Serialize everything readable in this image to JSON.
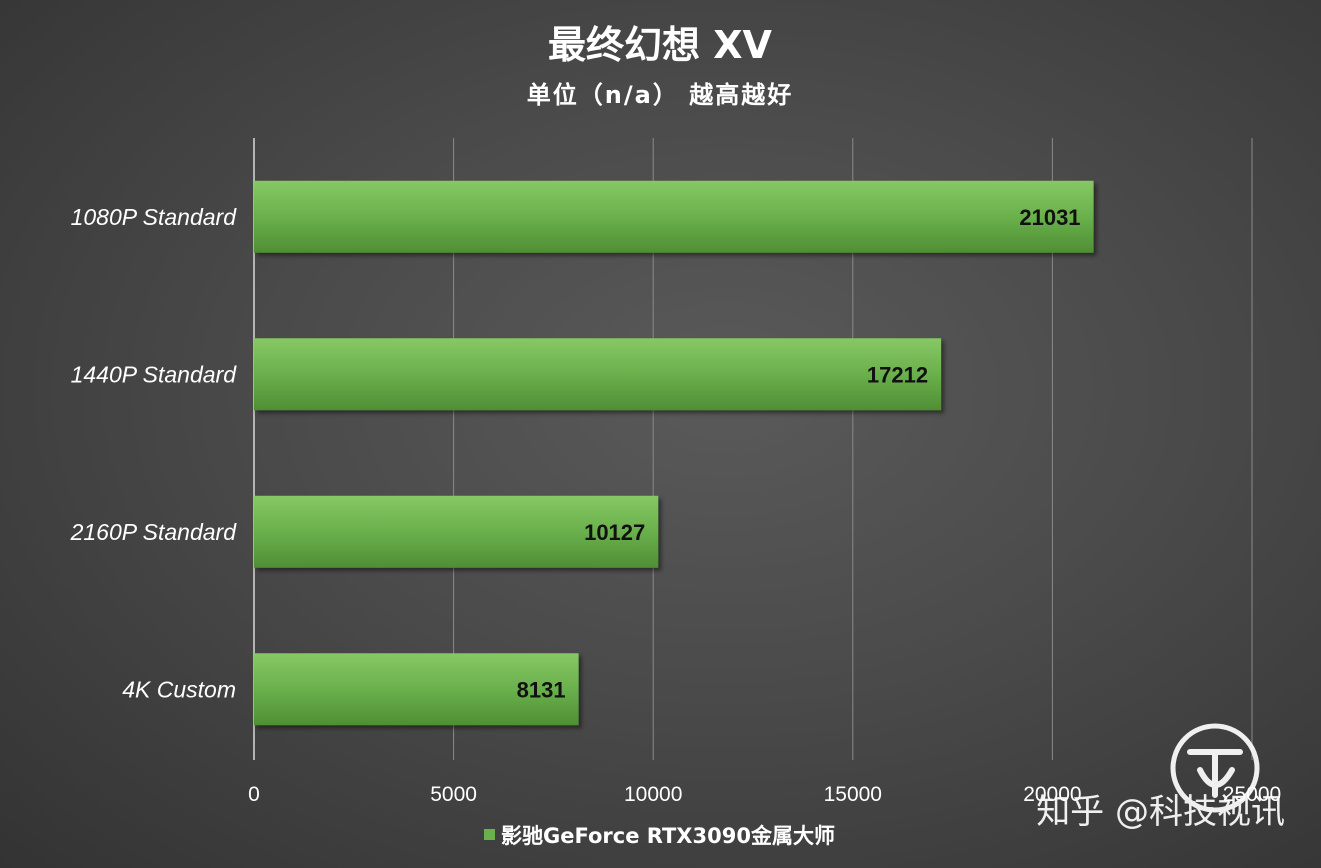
{
  "chart_data": {
    "type": "bar",
    "orientation": "horizontal",
    "title": "最终幻想 XV",
    "subtitle": "单位（n/a） 越高越好",
    "categories": [
      "1080P Standard",
      "1440P Standard",
      "2160P Standard",
      "4K Custom"
    ],
    "series": [
      {
        "name": "影驰GeForce RTX3090金属大师",
        "values": [
          21031,
          17212,
          10127,
          8131
        ],
        "color": "#6ab04c"
      }
    ],
    "xlim": [
      0,
      25000
    ],
    "xticks": [
      "0",
      "5000",
      "10000",
      "15000",
      "20000",
      "25000"
    ],
    "grid": true,
    "legend_position": "bottom"
  },
  "watermark": {
    "text": "知乎 @科技视讯"
  }
}
